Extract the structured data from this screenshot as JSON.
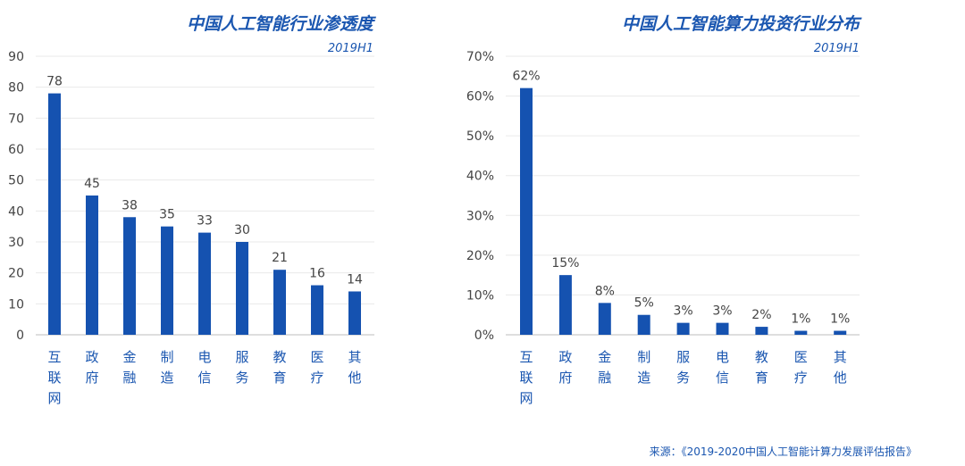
{
  "chart_data": [
    {
      "type": "bar",
      "title": "中国人工智能行业渗透度",
      "subtitle": "2019H1",
      "categories": [
        "互联网",
        "政府",
        "金融",
        "制造",
        "电信",
        "服务",
        "教育",
        "医疗",
        "其他"
      ],
      "values": [
        78,
        45,
        38,
        35,
        33,
        30,
        21,
        16,
        14
      ],
      "data_labels": [
        "78",
        "45",
        "38",
        "35",
        "33",
        "30",
        "21",
        "16",
        "14"
      ],
      "yticks": [
        "0",
        "10",
        "20",
        "30",
        "40",
        "50",
        "60",
        "70",
        "80",
        "90"
      ],
      "ylim": [
        0,
        90
      ],
      "xlabel": "",
      "ylabel": "",
      "grid": true,
      "color": "#1552b0"
    },
    {
      "type": "bar",
      "title": "中国人工智能算力投资行业分布",
      "subtitle": "2019H1",
      "categories": [
        "互联网",
        "政府",
        "金融",
        "制造",
        "服务",
        "电信",
        "教育",
        "医疗",
        "其他"
      ],
      "values": [
        62,
        15,
        8,
        5,
        3,
        3,
        2,
        1,
        1
      ],
      "data_labels": [
        "62%",
        "15%",
        "8%",
        "5%",
        "3%",
        "3%",
        "2%",
        "1%",
        "1%"
      ],
      "yticks": [
        "0%",
        "10%",
        "20%",
        "30%",
        "40%",
        "50%",
        "60%",
        "70%"
      ],
      "ylim": [
        0,
        70
      ],
      "xlabel": "",
      "ylabel": "",
      "grid": true,
      "color": "#1552b0"
    }
  ],
  "source_note": "来源：《2019-2020中国人工智能计算力发展评估报告》"
}
